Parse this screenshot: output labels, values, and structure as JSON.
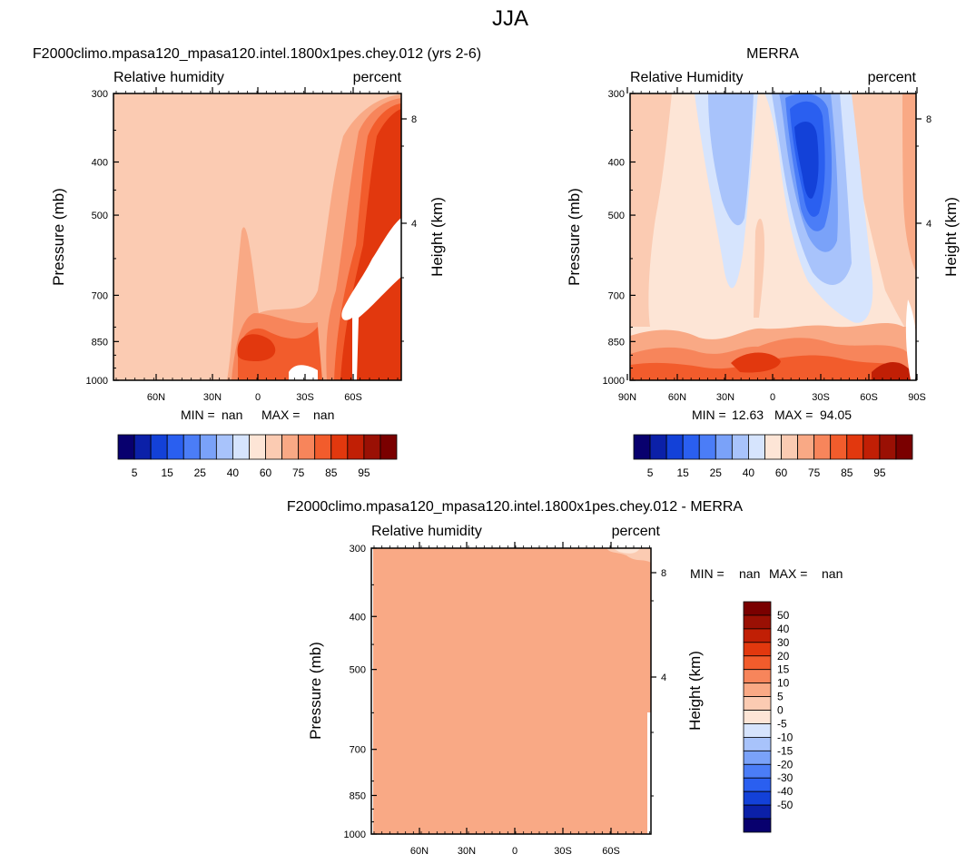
{
  "figure_title": "JJA",
  "panels": [
    {
      "title": "F2000climo.mpasa120_mpasa120.intel.1800x1pes.chey.012 (yrs 2-6)",
      "left_label": "Relative humidity",
      "right_label": "percent",
      "stats": {
        "min_label": "MIN =",
        "min": "nan",
        "max_label": "MAX =",
        "max": "nan"
      }
    },
    {
      "title": "MERRA",
      "left_label": "Relative Humidity",
      "right_label": "percent",
      "stats": {
        "min_label": "MIN =",
        "min": "12.63",
        "max_label": "MAX =",
        "max": "94.05"
      }
    },
    {
      "title": "F2000climo.mpasa120_mpasa120.intel.1800x1pes.chey.012 - MERRA",
      "left_label": "Relative humidity",
      "right_label": "percent",
      "stats": {
        "min_label": "MIN =",
        "min": "nan",
        "max_label": "MAX =",
        "max": "nan"
      }
    }
  ],
  "colorbar_main": {
    "colors": [
      "#08006e",
      "#0b20a8",
      "#1341d8",
      "#2a5ff0",
      "#4b7df7",
      "#7aa2f9",
      "#a8c3fb",
      "#d6e4fd",
      "#fde5d6",
      "#fbcbb2",
      "#f9a985",
      "#f7855b",
      "#f25c2c",
      "#e2380e",
      "#c11f05",
      "#9a1004",
      "#7a0000"
    ],
    "labels": [
      "5",
      "15",
      "25",
      "40",
      "60",
      "75",
      "85",
      "95"
    ]
  },
  "colorbar_diff": {
    "colors": [
      "#08006e",
      "#0b20a8",
      "#1341d8",
      "#2a5ff0",
      "#4b7df7",
      "#7aa2f9",
      "#a8c3fb",
      "#d6e4fd",
      "#fde5d6",
      "#fbcbb2",
      "#f9a985",
      "#f7855b",
      "#f25c2c",
      "#e2380e",
      "#c11f05",
      "#9a1004",
      "#7a0000"
    ],
    "labels": [
      "50",
      "40",
      "30",
      "20",
      "15",
      "10",
      "5",
      "0",
      "-5",
      "-10",
      "-15",
      "-20",
      "-30",
      "-40",
      "-50"
    ]
  },
  "chart_data": [
    {
      "type": "heatmap",
      "title": "F2000climo.mpasa120_mpasa120.intel.1800x1pes.chey.012 (yrs 2-6)",
      "xlabel": "",
      "ylabel": "Pressure (mb)",
      "y2label": "Height (km)",
      "y_ticks": [
        300,
        400,
        500,
        700,
        850,
        1000
      ],
      "y2_ticks": [
        8,
        4
      ],
      "x_ticks": [
        "60N",
        "30N",
        "0",
        "30S",
        "60S"
      ],
      "field": "Relative humidity (percent), zonal mean, pressure vs latitude"
    },
    {
      "type": "heatmap",
      "title": "MERRA",
      "xlabel": "",
      "ylabel": "Pressure (mb)",
      "y2label": "Height (km)",
      "y_ticks": [
        300,
        400,
        500,
        700,
        850,
        1000
      ],
      "y2_ticks": [
        8,
        4
      ],
      "x_ticks": [
        "90N",
        "60N",
        "30N",
        "0",
        "30S",
        "60S",
        "90S"
      ],
      "min": 12.63,
      "max": 94.05,
      "field": "Relative Humidity (percent), zonal mean, pressure vs latitude"
    },
    {
      "type": "heatmap",
      "title": "F2000climo.mpasa120_mpasa120.intel.1800x1pes.chey.012 - MERRA",
      "xlabel": "",
      "ylabel": "Pressure (mb)",
      "y2label": "Height (km)",
      "y_ticks": [
        300,
        400,
        500,
        700,
        850,
        1000
      ],
      "y2_ticks": [
        8,
        4
      ],
      "x_ticks": [
        "60N",
        "30N",
        "0",
        "30S",
        "60S"
      ],
      "field": "Relative humidity difference (percent)"
    }
  ]
}
